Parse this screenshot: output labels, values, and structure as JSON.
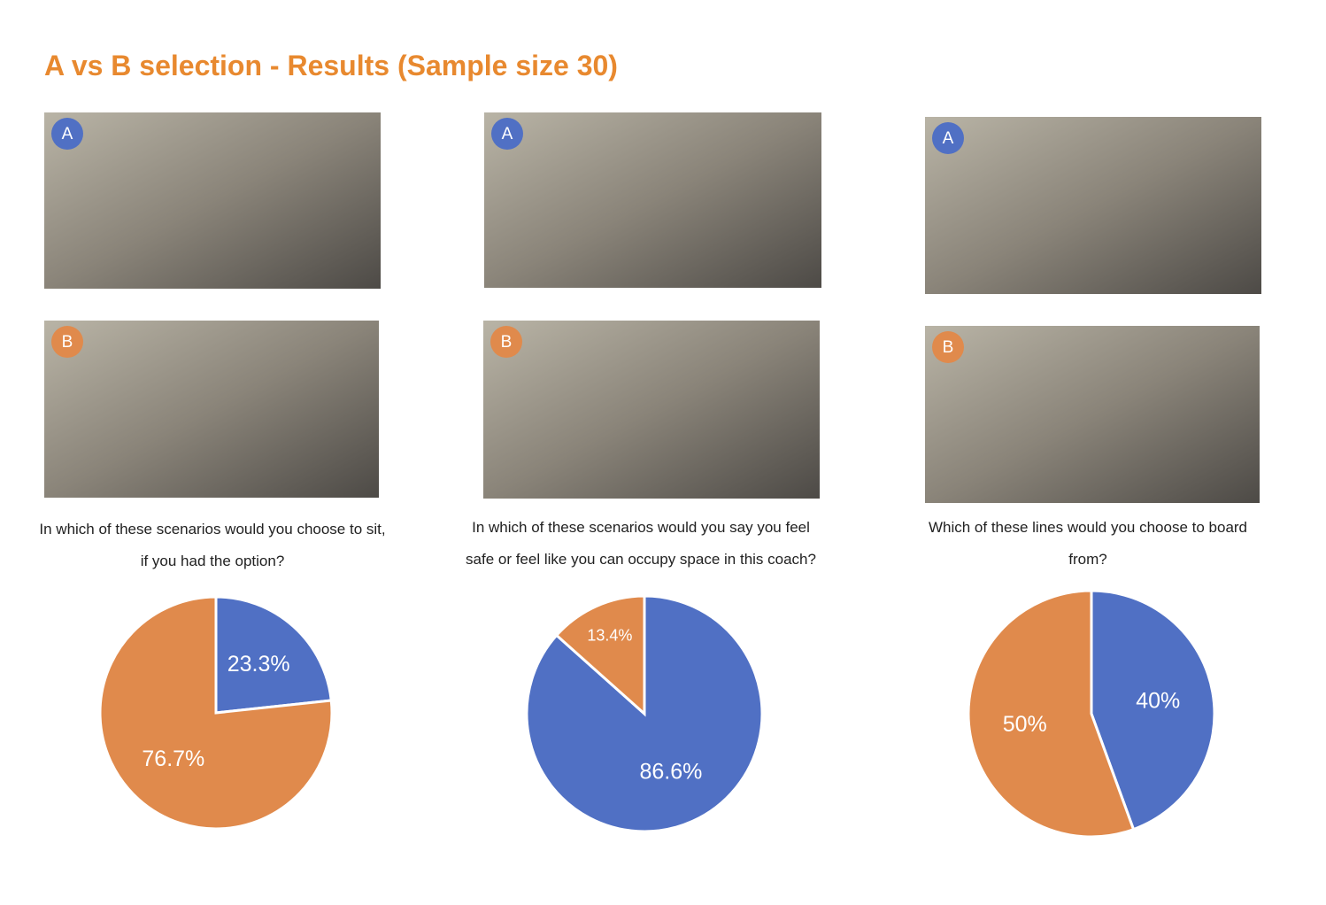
{
  "title": "A vs B selection - Results (Sample size 30)",
  "chart_data": [
    {
      "type": "pie",
      "title": "In which of these scenarios would you choose to sit, if you had the option?",
      "categories": [
        "A",
        "B"
      ],
      "values": [
        23.3,
        76.7
      ],
      "value_labels": [
        "23.3%",
        "76.7%"
      ],
      "colors": [
        "#5070c4",
        "#e08a4c"
      ]
    },
    {
      "type": "pie",
      "title": "In which of these scenarios would you say you feel safe or feel like you can occupy space in this coach?",
      "categories": [
        "A",
        "B"
      ],
      "values": [
        86.6,
        13.4
      ],
      "value_labels": [
        "86.6%",
        "13.4%"
      ],
      "colors": [
        "#5070c4",
        "#e08a4c"
      ]
    },
    {
      "type": "pie",
      "title": "Which of these lines would you choose to board from?",
      "categories": [
        "A",
        "B"
      ],
      "values": [
        40,
        50
      ],
      "value_labels": [
        "40%",
        "50%"
      ],
      "colors": [
        "#5070c4",
        "#e08a4c"
      ]
    }
  ]
}
